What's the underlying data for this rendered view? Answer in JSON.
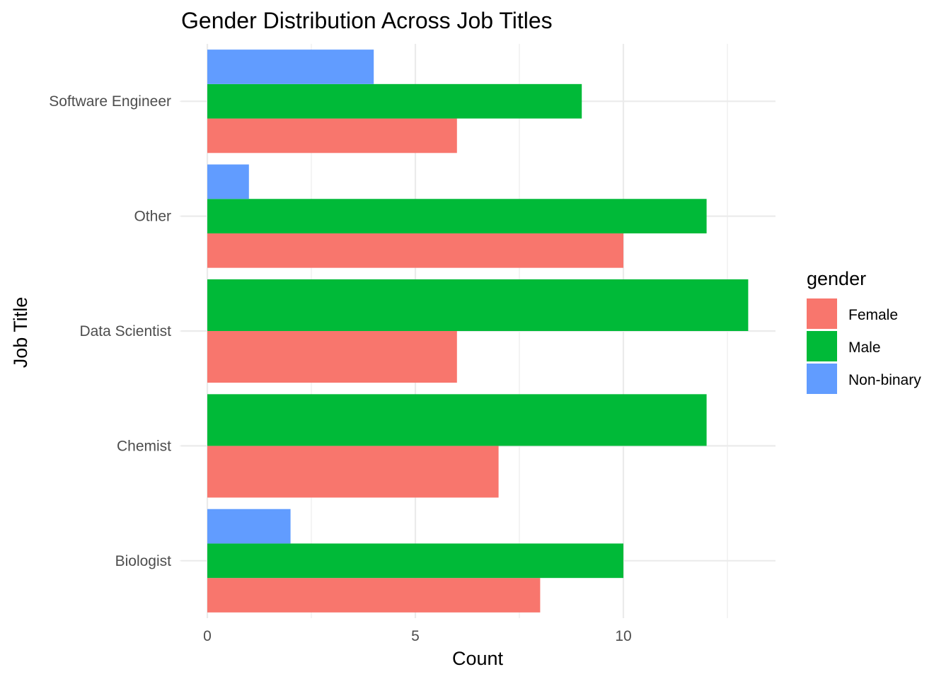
{
  "chart_data": {
    "type": "bar",
    "orientation": "horizontal",
    "title": "Gender Distribution Across Job Titles",
    "xlabel": "Count",
    "ylabel": "Job Title",
    "categories": [
      "Biologist",
      "Chemist",
      "Data Scientist",
      "Other",
      "Software Engineer"
    ],
    "xlim": [
      0,
      13.7
    ],
    "x_ticks": [
      0,
      5,
      10
    ],
    "x_minor_ticks": [
      2.5,
      7.5,
      12.5
    ],
    "grid": true,
    "legend": {
      "title": "gender",
      "position": "right"
    },
    "series": [
      {
        "name": "Female",
        "color": "#F8766D",
        "values": [
          8,
          7,
          6,
          10,
          6
        ]
      },
      {
        "name": "Male",
        "color": "#00BA38",
        "values": [
          10,
          12,
          13,
          12,
          9
        ]
      },
      {
        "name": "Non-binary",
        "color": "#619CFF",
        "values": [
          2,
          null,
          null,
          1,
          4
        ]
      }
    ]
  }
}
